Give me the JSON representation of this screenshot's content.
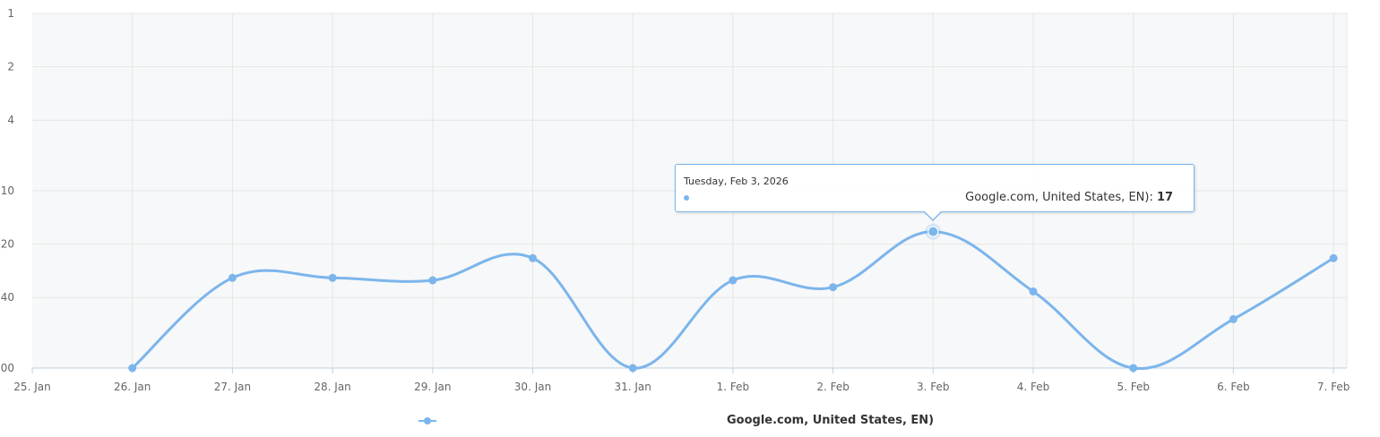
{
  "chart_data": {
    "type": "line",
    "x": [
      "26. Jan",
      "27. Jan",
      "28. Jan",
      "29. Jan",
      "30. Jan",
      "31. Jan",
      "1. Feb",
      "2. Feb",
      "3. Feb",
      "4. Feb",
      "5. Feb",
      "6. Feb",
      "7. Feb"
    ],
    "x_ticks": [
      "25. Jan",
      "26. Jan",
      "27. Jan",
      "28. Jan",
      "29. Jan",
      "30. Jan",
      "31. Jan",
      "1. Feb",
      "2. Feb",
      "3. Feb",
      "4. Feb",
      "5. Feb",
      "6. Feb",
      "7. Feb"
    ],
    "y_ticks": [
      "1",
      "2",
      "4",
      "10",
      "20",
      "40",
      "00"
    ],
    "y_scale": "log-reversed",
    "series": [
      {
        "name": "Google.com, United States, EN)",
        "color": "#7cb5ec",
        "values": [
          100,
          31,
          31,
          32,
          24,
          100,
          32,
          35,
          17,
          37,
          100,
          53,
          24
        ]
      }
    ],
    "grid": true,
    "legend": "bottom-center"
  },
  "tooltip": {
    "date": "Tuesday, Feb 3, 2026",
    "series_text": "Google.com, United States, EN):",
    "value": "17"
  }
}
